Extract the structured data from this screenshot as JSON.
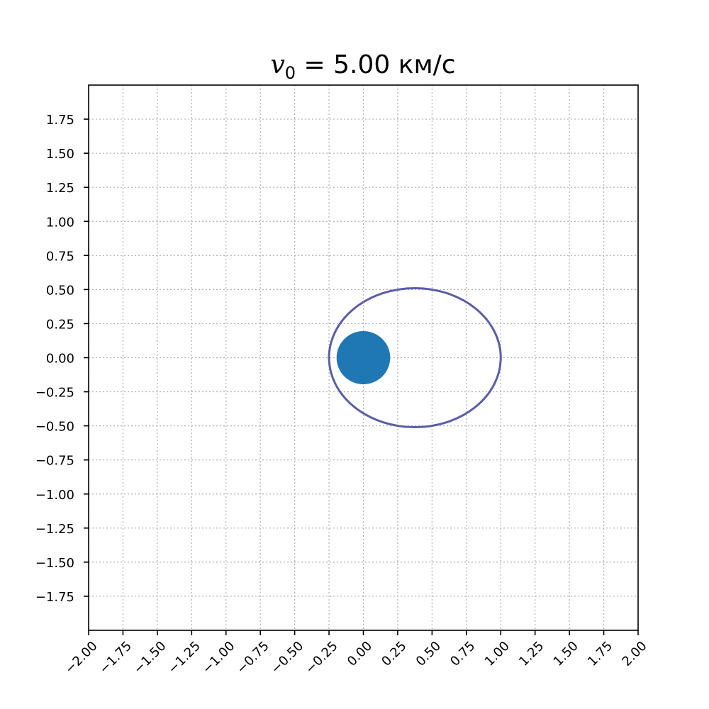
{
  "chart_data": {
    "type": "line",
    "title": "v₀ = 5.00 км/с",
    "title_parts": {
      "symbol": "v",
      "subscript": "0",
      "rest": " = 5.00 км/с"
    },
    "xlabel": "",
    "ylabel": "",
    "xlim": [
      -2.0,
      2.0
    ],
    "ylim": [
      -2.0,
      2.0
    ],
    "x_ticks": [
      -2.0,
      -1.75,
      -1.5,
      -1.25,
      -1.0,
      -0.75,
      -0.5,
      -0.25,
      0.0,
      0.25,
      0.5,
      0.75,
      1.0,
      1.25,
      1.5,
      1.75,
      2.0
    ],
    "y_ticks": [
      -1.75,
      -1.5,
      -1.25,
      -1.0,
      -0.75,
      -0.5,
      -0.25,
      0.0,
      0.25,
      0.5,
      0.75,
      1.0,
      1.25,
      1.5,
      1.75
    ],
    "x_tick_labels": [
      "−2.00",
      "−1.75",
      "−1.50",
      "−1.25",
      "−1.00",
      "−0.75",
      "−0.50",
      "−0.25",
      "0.00",
      "0.25",
      "0.50",
      "0.75",
      "1.00",
      "1.25",
      "1.50",
      "1.75",
      "2.00"
    ],
    "y_tick_labels": [
      "−1.75",
      "−1.50",
      "−1.25",
      "−1.00",
      "−0.75",
      "−0.50",
      "−0.25",
      "0.00",
      "0.25",
      "0.50",
      "0.75",
      "1.00",
      "1.25",
      "1.50",
      "1.75"
    ],
    "grid": true,
    "grid_style": "dotted",
    "planet": {
      "center": [
        0.0,
        0.0
      ],
      "radius": 0.195,
      "color": "#1f77b4"
    },
    "orbit": {
      "shape": "ellipse",
      "center": [
        0.375,
        0.0
      ],
      "semi_axes": [
        0.625,
        0.51
      ],
      "color": "#5b5ea6"
    }
  }
}
